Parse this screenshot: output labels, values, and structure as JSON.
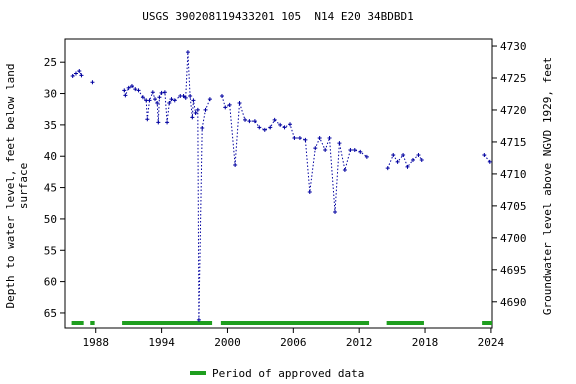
{
  "chart_data": {
    "type": "line",
    "title": "USGS 390208119433201 105  N14 E20 34BDBD1",
    "y_label": [
      "Depth to water level, feet below land",
      "surface"
    ],
    "y2_label": "Groundwater level above NGVD 1929, feet",
    "color": "#0000a0",
    "x": [
      1985.9,
      1986.2,
      1986.5,
      1986.7,
      null,
      1987.7,
      null,
      1990.6,
      1990.7,
      1991.0,
      1991.3,
      1991.6,
      1991.9,
      1992.3,
      1992.6,
      1992.7,
      1992.9,
      1993.2,
      1993.4,
      1993.6,
      1993.7,
      1993.8,
      1994.0,
      1994.3,
      1994.5,
      1994.7,
      1994.9,
      1995.2,
      1995.7,
      1996.0,
      1996.2,
      1996.4,
      1996.6,
      1996.8,
      1996.9,
      1997.1,
      1997.3,
      1997.4,
      1997.7,
      1998.0,
      1998.4,
      null,
      1999.5,
      1999.8,
      2000.2,
      2000.7,
      2001.1,
      2001.6,
      2002.0,
      2002.5,
      2002.9,
      2003.4,
      2003.9,
      2004.3,
      2004.8,
      2005.2,
      2005.7,
      2006.1,
      2006.6,
      2007.1,
      2007.5,
      2008.0,
      2008.4,
      2008.9,
      2009.3,
      2009.8,
      2010.2,
      2010.7,
      2011.2,
      2011.6,
      2012.1,
      2012.7,
      null,
      2014.6,
      2015.1,
      2015.5,
      2016.0,
      2016.4,
      2016.9,
      2017.4,
      2017.7,
      null,
      2023.4,
      2023.9
    ],
    "values": [
      27.2,
      26.8,
      26.4,
      27.1,
      null,
      28.2,
      null,
      29.5,
      30.3,
      29.1,
      28.8,
      29.3,
      29.5,
      30.6,
      31.1,
      34.1,
      31.1,
      29.8,
      30.9,
      31.5,
      34.6,
      30.6,
      29.9,
      29.8,
      34.6,
      31.5,
      30.9,
      31.1,
      30.4,
      30.4,
      30.7,
      23.4,
      30.4,
      33.8,
      31.1,
      33.1,
      32.6,
      66.1,
      35.5,
      32.6,
      30.9,
      null,
      30.4,
      32.2,
      31.8,
      41.4,
      31.5,
      34.2,
      34.4,
      34.4,
      35.4,
      35.8,
      35.4,
      34.2,
      35.0,
      35.4,
      34.9,
      37.1,
      37.1,
      37.4,
      45.7,
      38.7,
      37.1,
      39.0,
      37.1,
      48.9,
      37.9,
      42.2,
      39.0,
      39.0,
      39.3,
      40.1,
      null,
      41.9,
      39.8,
      40.9,
      39.8,
      41.7,
      40.6,
      39.8,
      40.6,
      null,
      39.8,
      40.9
    ],
    "approved_periods": [
      [
        1985.8,
        1986.9
      ],
      [
        1987.5,
        1987.9
      ],
      [
        1990.4,
        1998.6
      ],
      [
        1999.4,
        2012.9
      ],
      [
        2014.5,
        2017.9
      ],
      [
        2023.2,
        2024.1
      ]
    ],
    "approved_color": "#1e9e1e",
    "legend": "Period of approved data",
    "xlim": [
      1985.2,
      2024.1
    ],
    "xticks": [
      1988,
      1994,
      2000,
      2006,
      2012,
      2018,
      2024
    ],
    "ylim": [
      21.3,
      67.4
    ],
    "y_inverted": true,
    "yticks": [
      25,
      30,
      35,
      40,
      45,
      50,
      55,
      60,
      65
    ],
    "y2lim": [
      4685.9,
      4731.1
    ],
    "y2ticks": [
      4690,
      4695,
      4700,
      4705,
      4710,
      4715,
      4720,
      4725,
      4730
    ]
  }
}
